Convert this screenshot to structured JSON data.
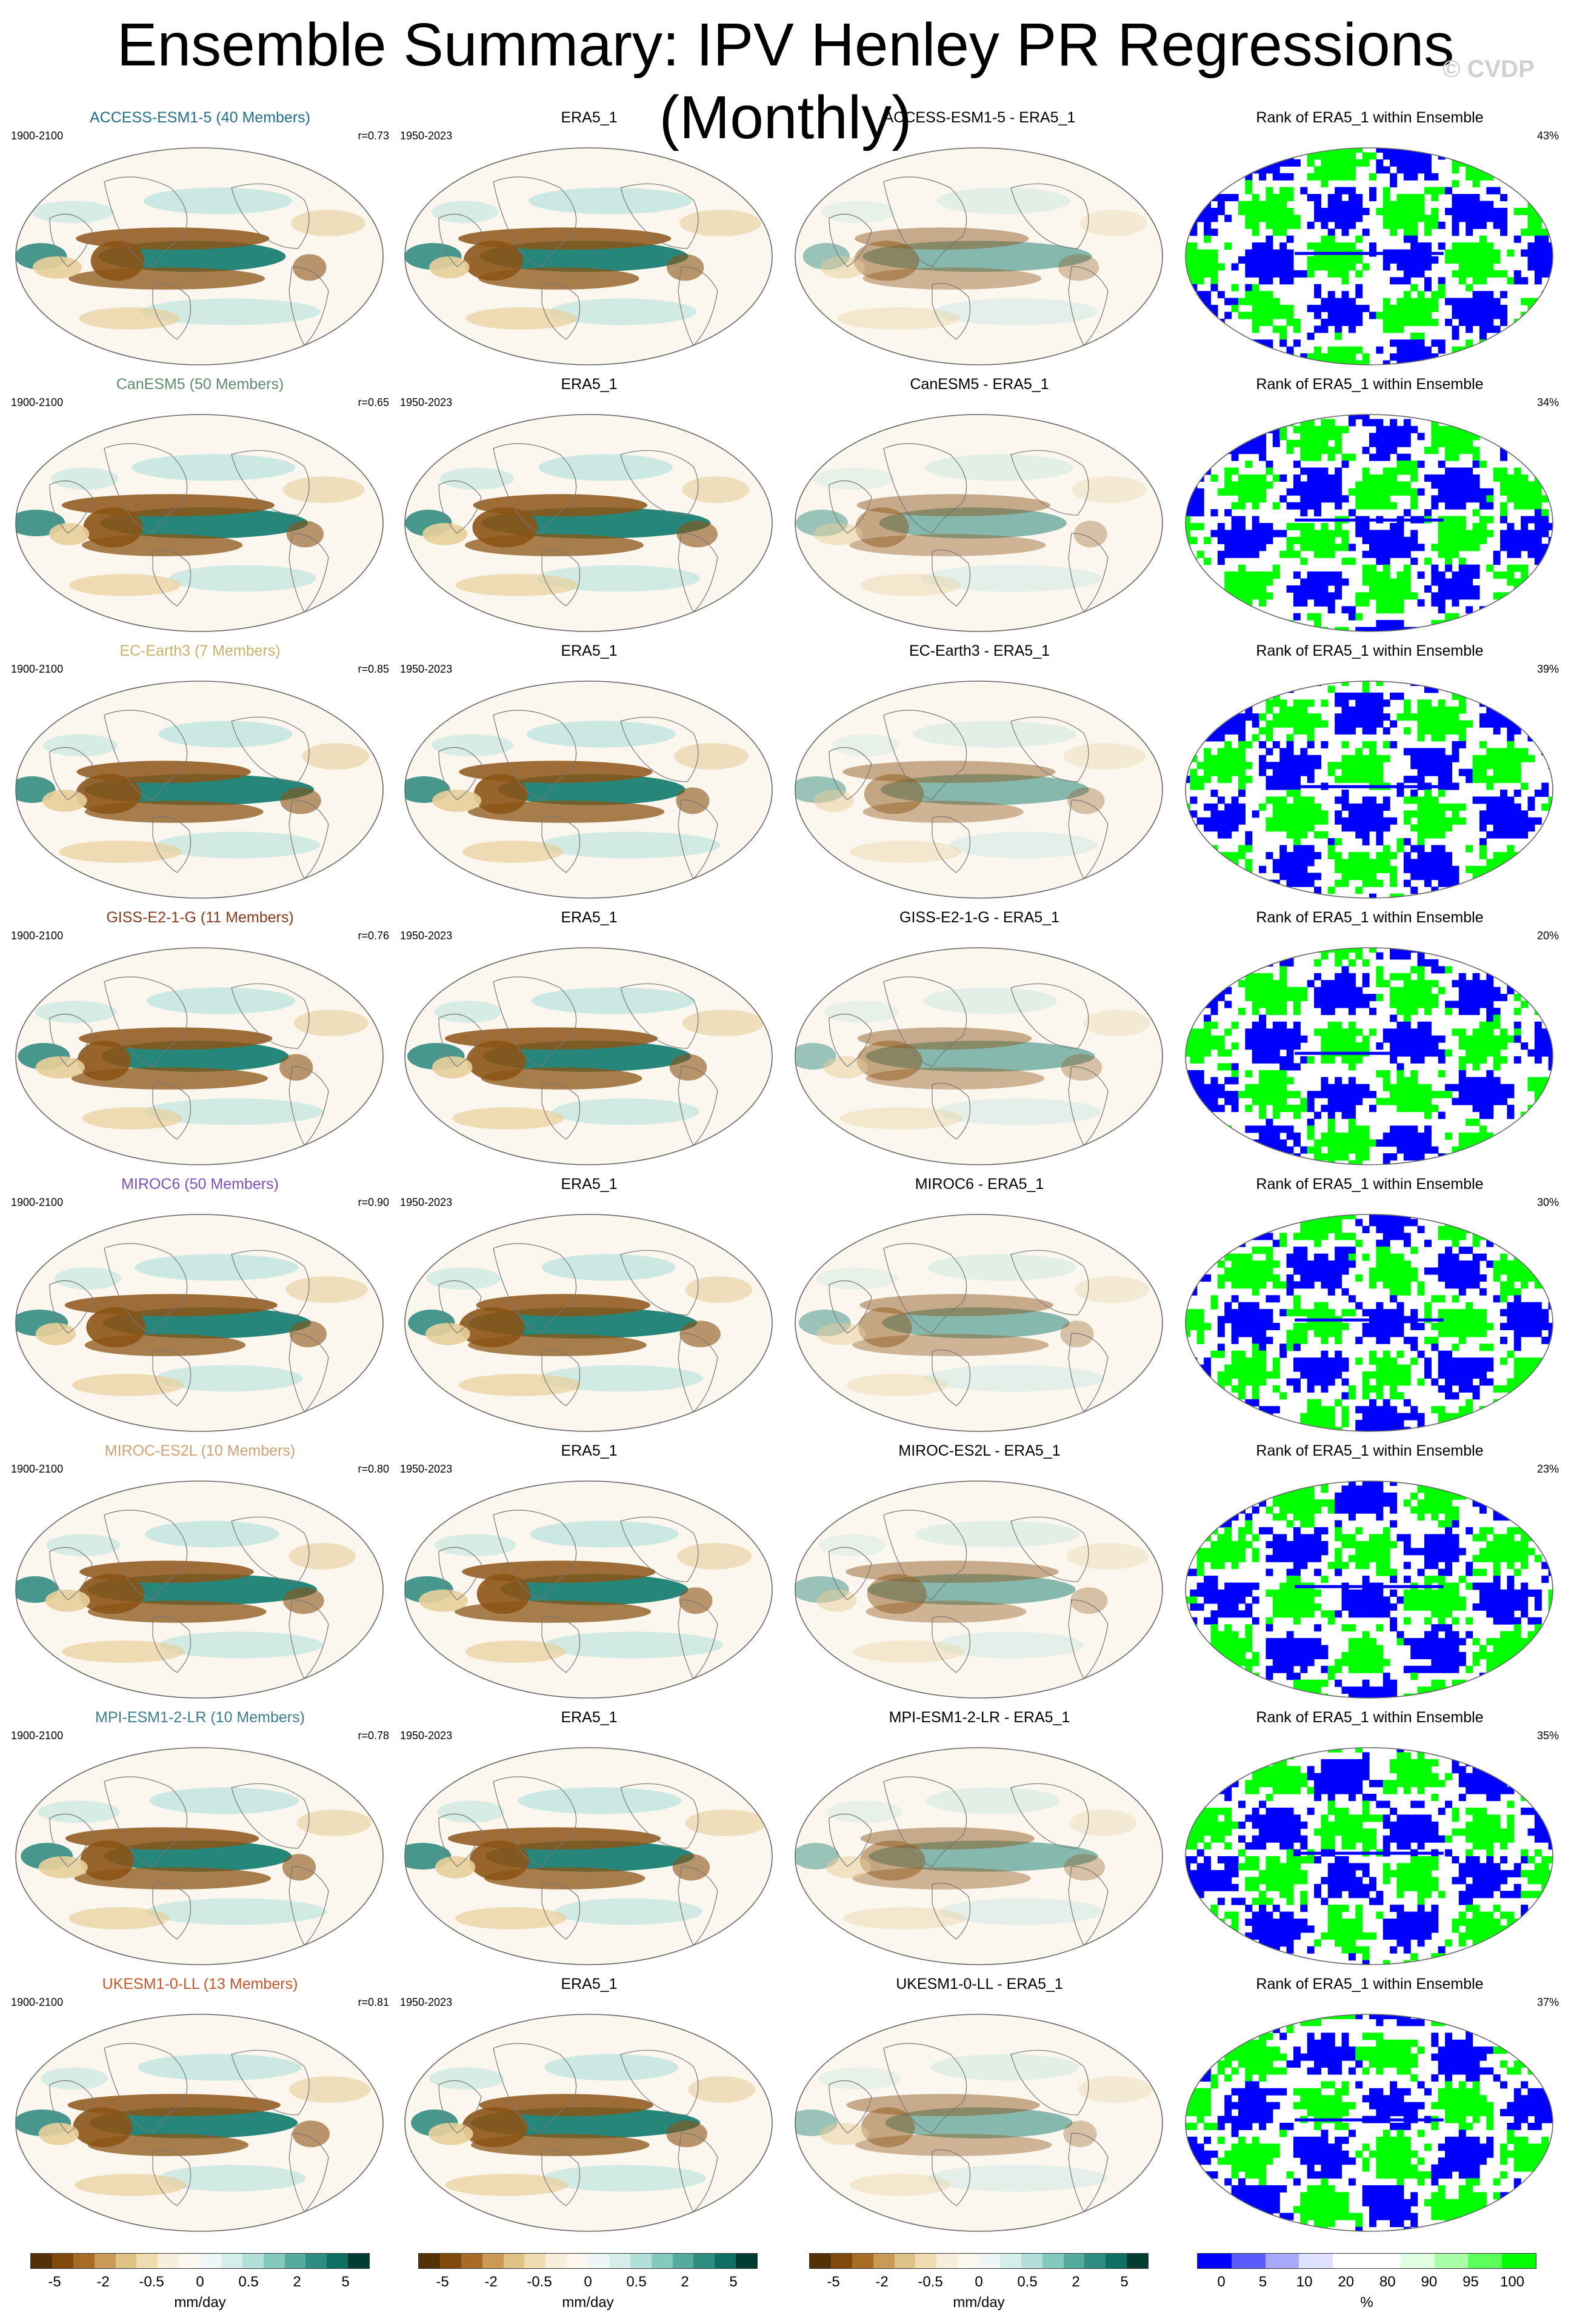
{
  "title": "Ensemble Summary: IPV Henley PR Regressions (Monthly)",
  "watermark": "© CVDP",
  "rows": [
    {
      "model_title": "ACCESS-ESM1-5 (40 Members)",
      "model_color": "#1f6f8b",
      "model_years": "1900-2100",
      "corr": "r=0.73",
      "obs_title": "ERA5_1",
      "obs_years": "1950-2023",
      "diff_title": "ACCESS-ESM1-5 - ERA5_1",
      "rank_title": "Rank of ERA5_1 within Ensemble",
      "rank_pct": "43%"
    },
    {
      "model_title": "CanESM5 (50 Members)",
      "model_color": "#5e8c6a",
      "model_years": "1900-2100",
      "corr": "r=0.65",
      "obs_title": "ERA5_1",
      "obs_years": "1950-2023",
      "diff_title": "CanESM5 - ERA5_1",
      "rank_title": "Rank of ERA5_1 within Ensemble",
      "rank_pct": "34%"
    },
    {
      "model_title": "EC-Earth3 (7 Members)",
      "model_color": "#c9b26a",
      "model_years": "1900-2100",
      "corr": "r=0.85",
      "obs_title": "ERA5_1",
      "obs_years": "1950-2023",
      "diff_title": "EC-Earth3 - ERA5_1",
      "rank_title": "Rank of ERA5_1 within Ensemble",
      "rank_pct": "39%"
    },
    {
      "model_title": "GISS-E2-1-G (11 Members)",
      "model_color": "#8b3a1a",
      "model_years": "1900-2100",
      "corr": "r=0.76",
      "obs_title": "ERA5_1",
      "obs_years": "1950-2023",
      "diff_title": "GISS-E2-1-G - ERA5_1",
      "rank_title": "Rank of ERA5_1 within Ensemble",
      "rank_pct": "20%"
    },
    {
      "model_title": "MIROC6 (50 Members)",
      "model_color": "#7b4fc0",
      "model_years": "1900-2100",
      "corr": "r=0.90",
      "obs_title": "ERA5_1",
      "obs_years": "1950-2023",
      "diff_title": "MIROC6 - ERA5_1",
      "rank_title": "Rank of ERA5_1 within Ensemble",
      "rank_pct": "30%"
    },
    {
      "model_title": "MIROC-ES2L (10 Members)",
      "model_color": "#d4a070",
      "model_years": "1900-2100",
      "corr": "r=0.80",
      "obs_title": "ERA5_1",
      "obs_years": "1950-2023",
      "diff_title": "MIROC-ES2L - ERA5_1",
      "rank_title": "Rank of ERA5_1 within Ensemble",
      "rank_pct": "23%"
    },
    {
      "model_title": "MPI-ESM1-2-LR (10 Members)",
      "model_color": "#3a7f8c",
      "model_years": "1900-2100",
      "corr": "r=0.78",
      "obs_title": "ERA5_1",
      "obs_years": "1950-2023",
      "diff_title": "MPI-ESM1-2-LR - ERA5_1",
      "rank_title": "Rank of ERA5_1 within Ensemble",
      "rank_pct": "35%"
    },
    {
      "model_title": "UKESM1-0-LL (13 Members)",
      "model_color": "#c8552a",
      "model_years": "1900-2100",
      "corr": "r=0.81",
      "obs_title": "ERA5_1",
      "obs_years": "1950-2023",
      "diff_title": "UKESM1-0-LL - ERA5_1",
      "rank_title": "Rank of ERA5_1 within Ensemble",
      "rank_pct": "37%"
    }
  ],
  "colorbar_regression": {
    "colors": [
      "#543005",
      "#7f4a0c",
      "#a86b26",
      "#c99a55",
      "#dfc286",
      "#efdcb0",
      "#f7eedb",
      "#fbf6ee",
      "#eef7f5",
      "#d6eeea",
      "#b2e0d8",
      "#84c9bd",
      "#55ab9e",
      "#2c8d80",
      "#0f6f63",
      "#003c30"
    ],
    "ticks": [
      "-5",
      "-2",
      "-0.5",
      "0",
      "0.5",
      "2",
      "5"
    ],
    "unit": "mm/day"
  },
  "colorbar_rank": {
    "colors": [
      "#0000ff",
      "#5a5aff",
      "#a8a8ff",
      "#e0e0ff",
      "#ffffff",
      "#ffffff",
      "#e0ffe0",
      "#a8ffa8",
      "#5aff5a",
      "#00ff00"
    ],
    "ticks": [
      "0",
      "5",
      "10",
      "20",
      "80",
      "90",
      "95",
      "100"
    ],
    "unit": "%"
  },
  "palette": {
    "brown": "#8c5416",
    "tan": "#e8cf9a",
    "teal": "#1b7f73",
    "mint": "#bfe6df",
    "rank_low": "#0000ff",
    "rank_high": "#00ff00",
    "ocean_bg": "#fbf6ee"
  }
}
